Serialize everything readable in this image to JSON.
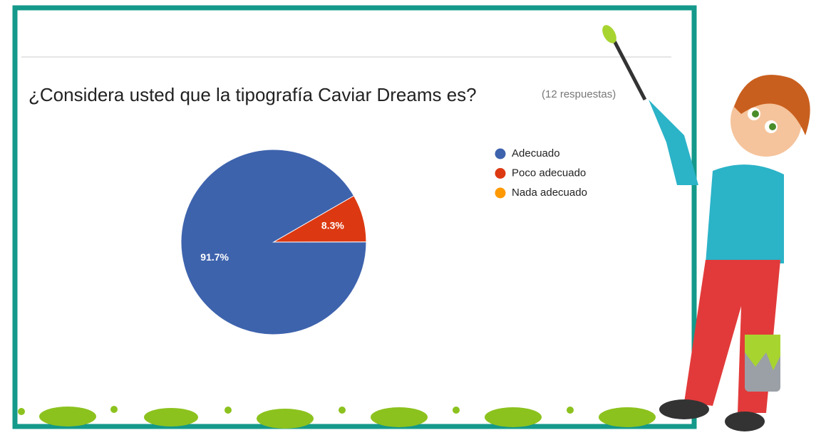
{
  "chart_data": {
    "type": "pie",
    "title": "¿Considera usted que la tipografía Caviar Dreams es?",
    "subtitle": "(12 respuestas)",
    "categories": [
      "Adecuado",
      "Poco adecuado",
      "Nada adecuado"
    ],
    "values": [
      91.7,
      8.3,
      0
    ],
    "value_labels": [
      "91.7%",
      "8.3%",
      null
    ],
    "colors": [
      "#3e63ad",
      "#dc3912",
      "#ff9900"
    ],
    "legend": "right"
  }
}
